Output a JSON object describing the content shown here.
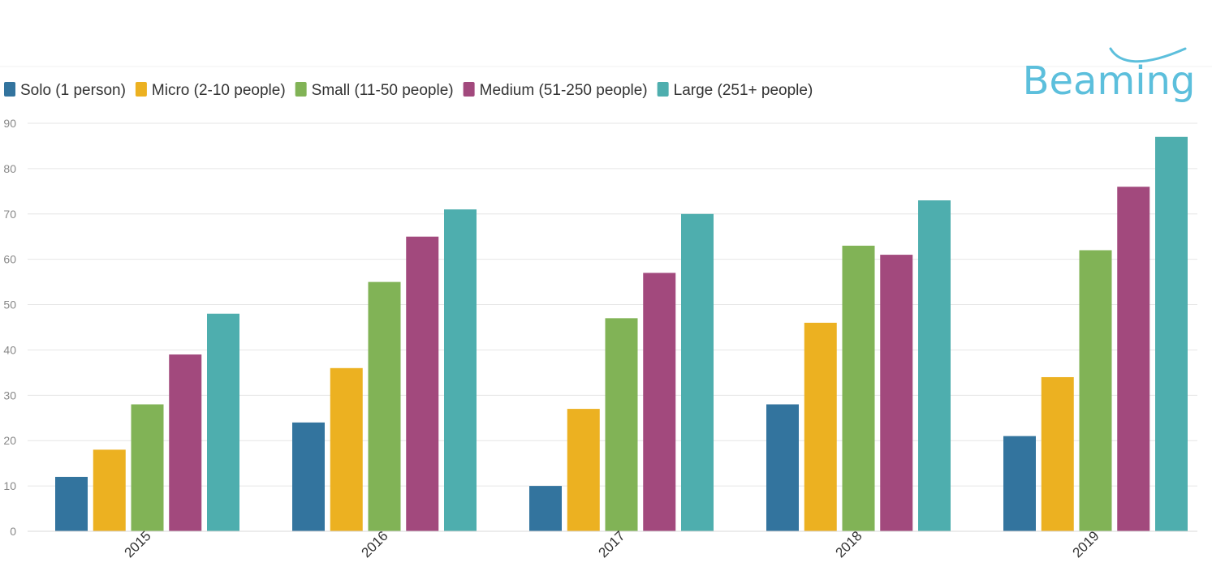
{
  "logo": {
    "text": "Beaming",
    "color": "#5cbfdc"
  },
  "chart_data": {
    "type": "bar",
    "categories": [
      "2015",
      "2016",
      "2017",
      "2018",
      "2019"
    ],
    "series": [
      {
        "name": "Solo (1 person)",
        "color": "#33749e",
        "values": [
          12,
          24,
          10,
          28,
          21
        ]
      },
      {
        "name": "Micro (2-10 people)",
        "color": "#ecb121",
        "values": [
          18,
          36,
          27,
          46,
          34
        ]
      },
      {
        "name": "Small (11-50 people)",
        "color": "#81b356",
        "values": [
          28,
          55,
          47,
          63,
          62
        ]
      },
      {
        "name": "Medium (51-250 people)",
        "color": "#a2497d",
        "values": [
          39,
          65,
          57,
          61,
          76
        ]
      },
      {
        "name": "Large (251+ people)",
        "color": "#4eaeae",
        "values": [
          48,
          71,
          70,
          73,
          87
        ]
      }
    ],
    "yticks": [
      "0",
      "10",
      "20",
      "30",
      "40",
      "50",
      "60",
      "70",
      "80",
      "90"
    ],
    "ylim": [
      0,
      90
    ],
    "grid": true,
    "legend_position": "top-left",
    "title": "",
    "xlabel": "",
    "ylabel": ""
  }
}
